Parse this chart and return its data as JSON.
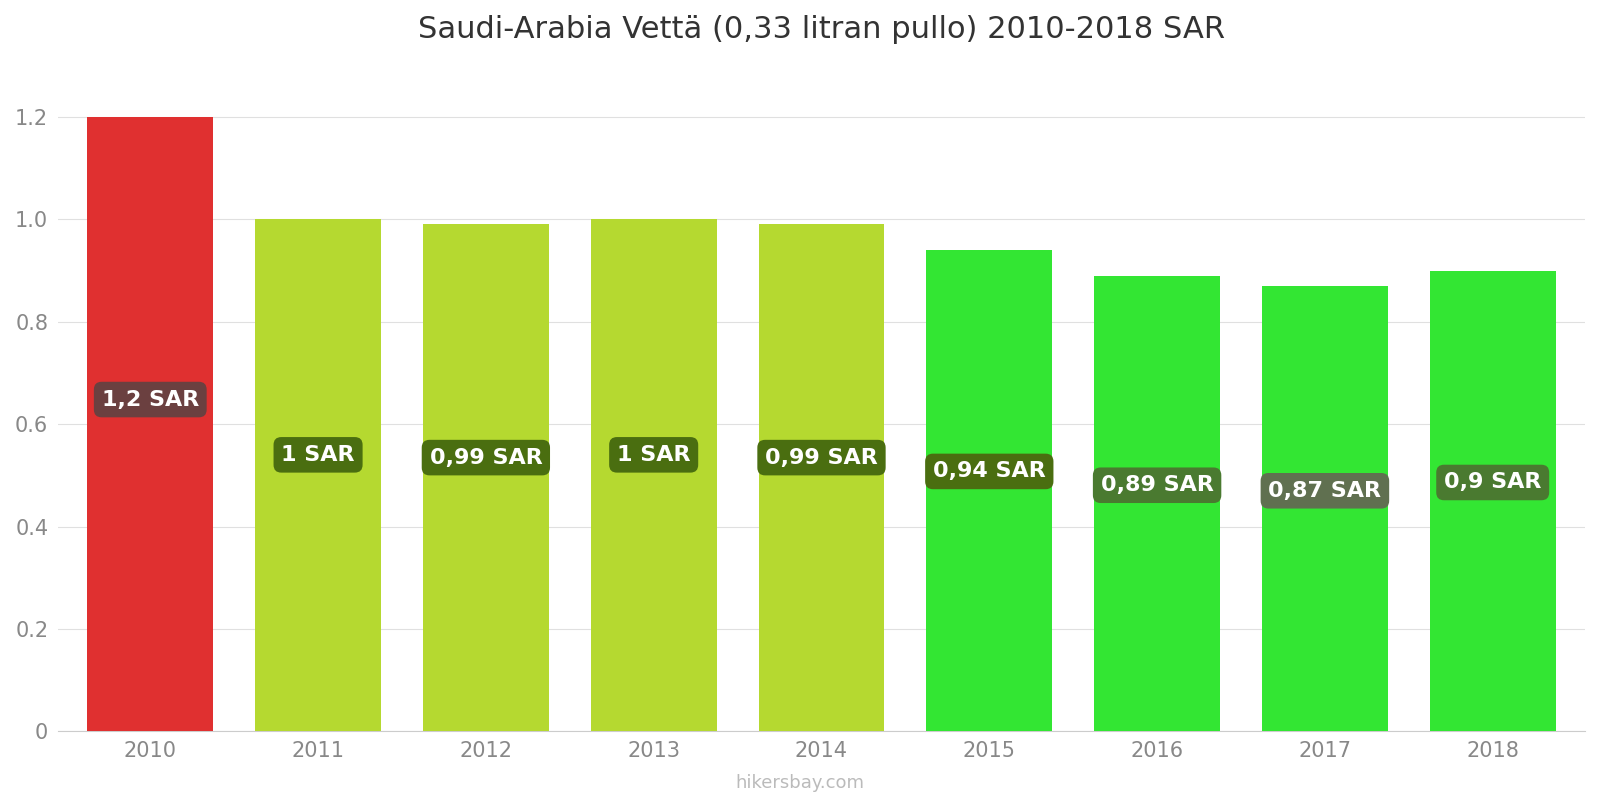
{
  "title": "Saudi-Arabia Vettä (0,33 litran pullo) 2010-2018 SAR",
  "years": [
    2010,
    2011,
    2012,
    2013,
    2014,
    2015,
    2016,
    2017,
    2018
  ],
  "values": [
    1.2,
    1.0,
    0.99,
    1.0,
    0.99,
    0.94,
    0.89,
    0.87,
    0.9
  ],
  "labels": [
    "1,2 SAR",
    "1 SAR",
    "0,99 SAR",
    "1 SAR",
    "0,99 SAR",
    "0,94 SAR",
    "0,89 SAR",
    "0,87 SAR",
    "0,9 SAR"
  ],
  "bar_colors": [
    "#e03030",
    "#b5d930",
    "#b5d930",
    "#b5d930",
    "#b5d930",
    "#33e633",
    "#33e633",
    "#33e633",
    "#33e633"
  ],
  "label_bg_colors": [
    "#6b4040",
    "#4a6e10",
    "#4a6e10",
    "#4a6e10",
    "#4a6e10",
    "#4a6e10",
    "#4a7a30",
    "#607050",
    "#4a7a30"
  ],
  "ylim": [
    0,
    1.3
  ],
  "yticks": [
    0,
    0.2,
    0.4,
    0.6,
    0.8,
    1.0,
    1.2
  ],
  "label_text_color": "#ffffff",
  "title_fontsize": 22,
  "tick_fontsize": 15,
  "label_fontsize": 16,
  "footer_text": "hikersbay.com",
  "footer_color": "#bbbbbb",
  "background_color": "#ffffff",
  "bar_width": 0.75
}
